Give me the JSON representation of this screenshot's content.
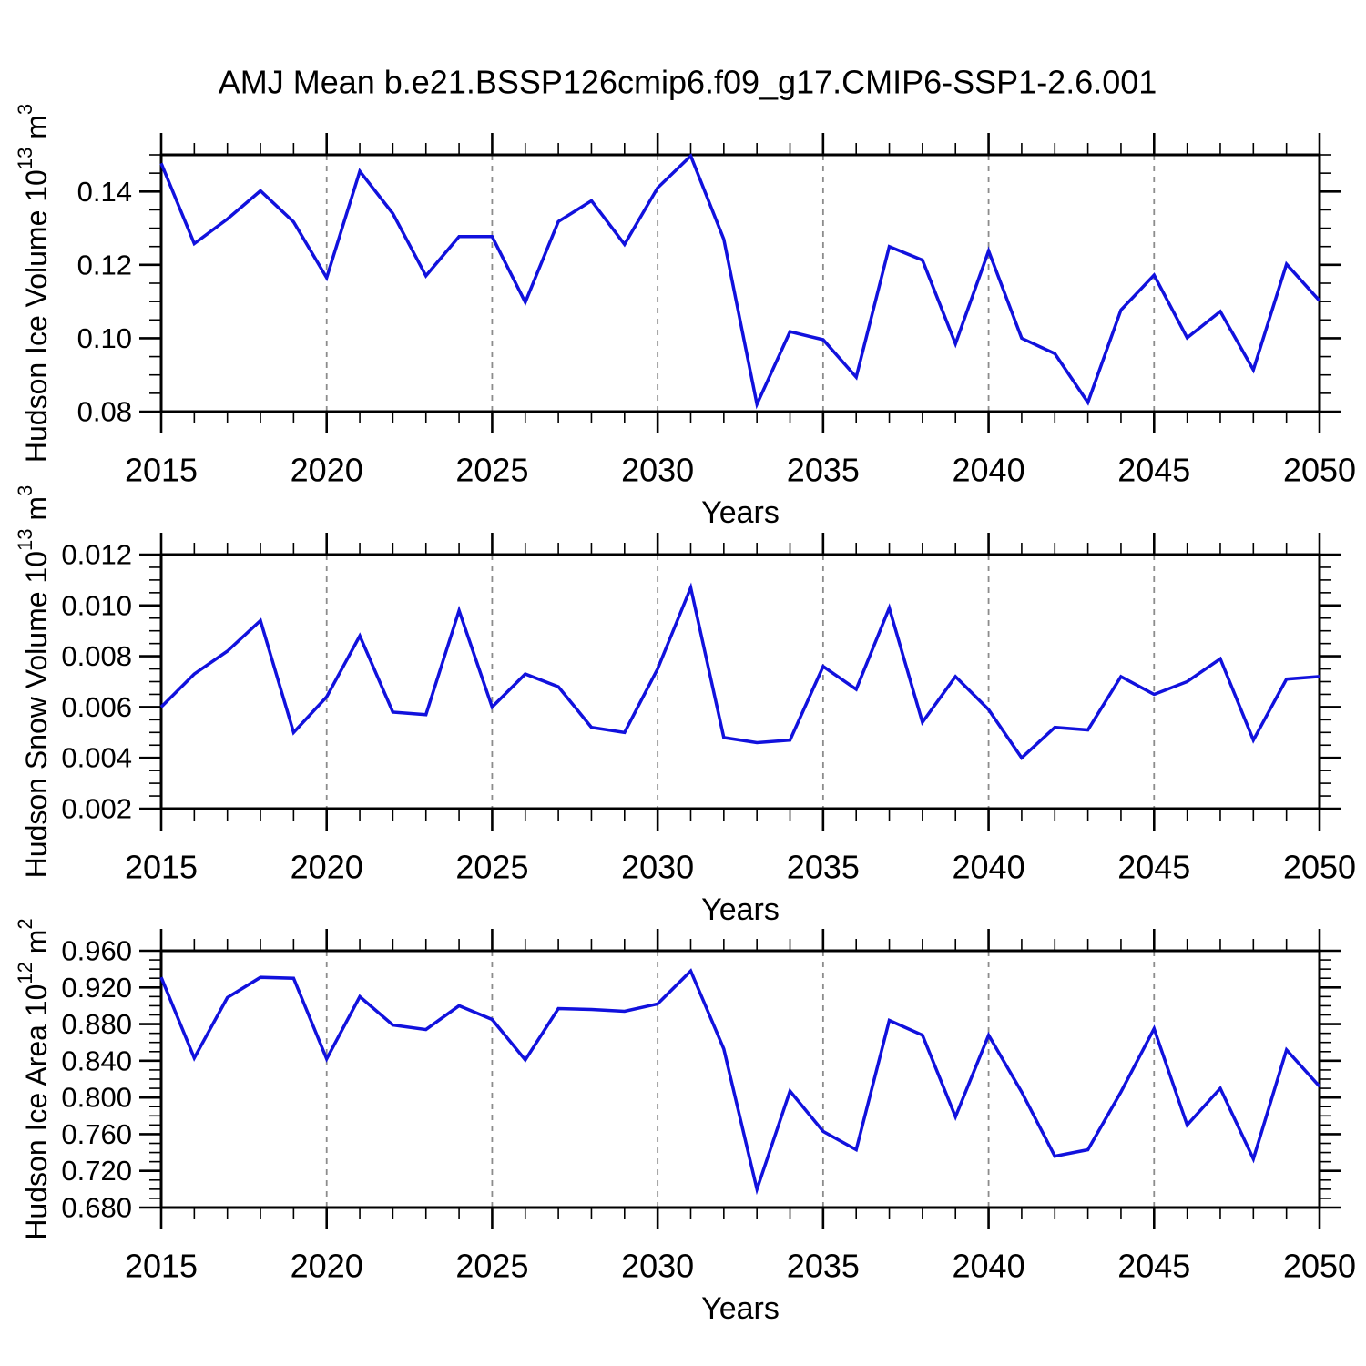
{
  "title": "AMJ Mean b.e21.BSSP126cmip6.f09_g17.CMIP6-SSP1-2.6.001",
  "colors": {
    "line": "#1111dd",
    "grid": "#8c8c8c",
    "axis": "#000000",
    "background": "#ffffff"
  },
  "chart_data": [
    {
      "type": "line",
      "name": "hudson-ice-volume",
      "ylabel_text": "Hudson Ice Volume 10^13 m^3",
      "ylabel_parts": [
        [
          "t",
          "Hudson Ice Volume 10"
        ],
        [
          "sup",
          "13"
        ],
        [
          "t",
          " m"
        ],
        [
          "sup",
          "3"
        ]
      ],
      "xlabel": "Years",
      "x_range": [
        2015,
        2050
      ],
      "xticks": [
        "2015",
        "2020",
        "2025",
        "2030",
        "2035",
        "2040",
        "2045",
        "2050"
      ],
      "xminor_step": 1,
      "grid_years": [
        2020,
        2025,
        2030,
        2035,
        2040,
        2045
      ],
      "ylim": [
        0.08,
        0.15
      ],
      "yticks": [
        {
          "v": 0.08,
          "label": "0.08"
        },
        {
          "v": 0.1,
          "label": "0.10"
        },
        {
          "v": 0.12,
          "label": "0.12"
        },
        {
          "v": 0.14,
          "label": "0.14"
        }
      ],
      "yminor_step": 0.005,
      "years": [
        2015,
        2016,
        2017,
        2018,
        2019,
        2020,
        2021,
        2022,
        2023,
        2024,
        2025,
        2026,
        2027,
        2028,
        2029,
        2030,
        2031,
        2032,
        2033,
        2034,
        2035,
        2036,
        2037,
        2038,
        2039,
        2040,
        2041,
        2042,
        2043,
        2044,
        2045,
        2046,
        2047,
        2048,
        2049,
        2050
      ],
      "values": [
        0.1477,
        0.1258,
        0.1325,
        0.1402,
        0.1317,
        0.1165,
        0.1455,
        0.134,
        0.117,
        0.1277,
        0.1277,
        0.1098,
        0.1318,
        0.1375,
        0.1256,
        0.141,
        0.1497,
        0.127,
        0.082,
        0.1018,
        0.0996,
        0.0894,
        0.125,
        0.1213,
        0.0985,
        0.1238,
        0.1,
        0.0958,
        0.0825,
        0.1077,
        0.1172,
        0.1001,
        0.1073,
        0.0914,
        0.1202,
        0.1102
      ]
    },
    {
      "type": "line",
      "name": "hudson-snow-volume",
      "ylabel_text": "Hudson Snow Volume 10^13 m^3",
      "ylabel_parts": [
        [
          "t",
          "Hudson Snow Volume 10"
        ],
        [
          "sup",
          "13"
        ],
        [
          "t",
          " m"
        ],
        [
          "sup",
          "3"
        ]
      ],
      "xlabel": "Years",
      "x_range": [
        2015,
        2050
      ],
      "xticks": [
        "2015",
        "2020",
        "2025",
        "2030",
        "2035",
        "2040",
        "2045",
        "2050"
      ],
      "xminor_step": 1,
      "grid_years": [
        2020,
        2025,
        2030,
        2035,
        2040,
        2045
      ],
      "ylim": [
        0.002,
        0.012
      ],
      "yticks": [
        {
          "v": 0.002,
          "label": "0.002"
        },
        {
          "v": 0.004,
          "label": "0.004"
        },
        {
          "v": 0.006,
          "label": "0.006"
        },
        {
          "v": 0.008,
          "label": "0.008"
        },
        {
          "v": 0.01,
          "label": "0.010"
        },
        {
          "v": 0.012,
          "label": "0.012"
        }
      ],
      "yminor_step": 0.0005,
      "years": [
        2015,
        2016,
        2017,
        2018,
        2019,
        2020,
        2021,
        2022,
        2023,
        2024,
        2025,
        2026,
        2027,
        2028,
        2029,
        2030,
        2031,
        2032,
        2033,
        2034,
        2035,
        2036,
        2037,
        2038,
        2039,
        2040,
        2041,
        2042,
        2043,
        2044,
        2045,
        2046,
        2047,
        2048,
        2049,
        2050
      ],
      "values": [
        0.006,
        0.0073,
        0.0082,
        0.0094,
        0.005,
        0.0064,
        0.0088,
        0.0058,
        0.0057,
        0.0098,
        0.006,
        0.0073,
        0.0068,
        0.0052,
        0.005,
        0.0075,
        0.0107,
        0.0048,
        0.0046,
        0.0047,
        0.0076,
        0.0067,
        0.0099,
        0.0054,
        0.0072,
        0.0059,
        0.004,
        0.0052,
        0.0051,
        0.0072,
        0.0065,
        0.007,
        0.0079,
        0.0047,
        0.0071,
        0.0072
      ]
    },
    {
      "type": "line",
      "name": "hudson-ice-area",
      "ylabel_text": "Hudson Ice Area 10^12 m^2",
      "ylabel_parts": [
        [
          "t",
          "Hudson Ice Area 10"
        ],
        [
          "sup",
          "12"
        ],
        [
          "t",
          " m"
        ],
        [
          "sup",
          "2"
        ]
      ],
      "xlabel": "Years",
      "x_range": [
        2015,
        2050
      ],
      "xticks": [
        "2015",
        "2020",
        "2025",
        "2030",
        "2035",
        "2040",
        "2045",
        "2050"
      ],
      "xminor_step": 1,
      "grid_years": [
        2020,
        2025,
        2030,
        2035,
        2040,
        2045
      ],
      "ylim": [
        0.68,
        0.96
      ],
      "yticks": [
        {
          "v": 0.68,
          "label": "0.680"
        },
        {
          "v": 0.72,
          "label": "0.720"
        },
        {
          "v": 0.76,
          "label": "0.760"
        },
        {
          "v": 0.8,
          "label": "0.800"
        },
        {
          "v": 0.84,
          "label": "0.840"
        },
        {
          "v": 0.88,
          "label": "0.880"
        },
        {
          "v": 0.92,
          "label": "0.920"
        },
        {
          "v": 0.96,
          "label": "0.960"
        }
      ],
      "yminor_step": 0.01,
      "years": [
        2015,
        2016,
        2017,
        2018,
        2019,
        2020,
        2021,
        2022,
        2023,
        2024,
        2025,
        2026,
        2027,
        2028,
        2029,
        2030,
        2031,
        2032,
        2033,
        2034,
        2035,
        2036,
        2037,
        2038,
        2039,
        2040,
        2041,
        2042,
        2043,
        2044,
        2045,
        2046,
        2047,
        2048,
        2049,
        2050
      ],
      "values": [
        0.931,
        0.843,
        0.909,
        0.931,
        0.93,
        0.842,
        0.91,
        0.879,
        0.874,
        0.9,
        0.885,
        0.841,
        0.897,
        0.896,
        0.894,
        0.902,
        0.938,
        0.853,
        0.7,
        0.807,
        0.763,
        0.743,
        0.884,
        0.868,
        0.779,
        0.868,
        0.806,
        0.736,
        0.743,
        0.806,
        0.875,
        0.77,
        0.81,
        0.733,
        0.852,
        0.812
      ]
    }
  ]
}
